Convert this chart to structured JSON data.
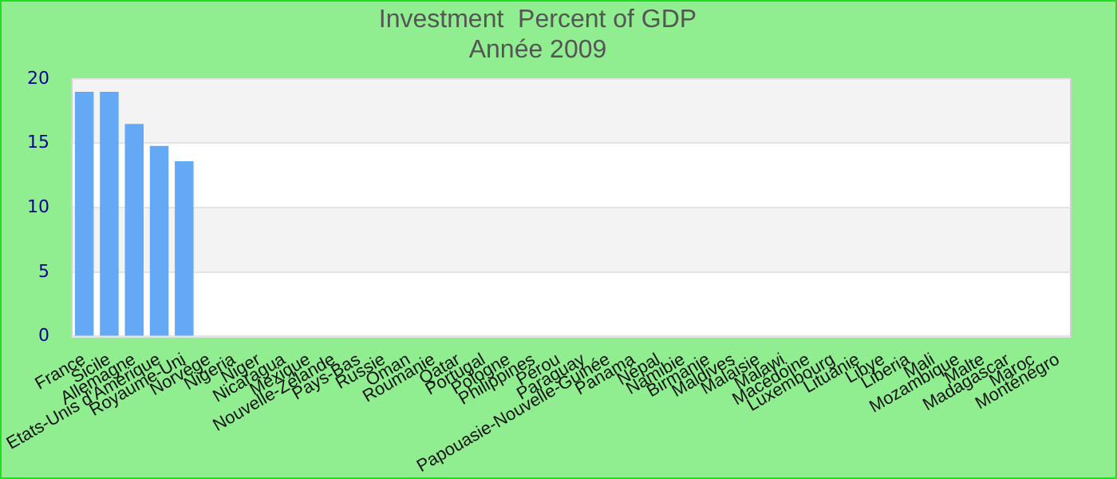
{
  "chart_data": {
    "type": "bar",
    "title": "Investment  Percent of GDP",
    "subtitle": "Année 2009",
    "categories": [
      "France",
      "Sicile",
      "Allemagne",
      "Etats-Unis d'Amérique",
      "Royaume-Uni",
      "Norvège",
      "Nigeria",
      "Niger",
      "Nicaragua",
      "Mexique",
      "Nouvelle-Zélande",
      "Pays-Bas",
      "Russie",
      "Oman",
      "Roumanie",
      "Qatar",
      "Portugal",
      "Pologne",
      "Philippines",
      "Pérou",
      "Paraguay",
      "Papouasie-Nouvelle-Guinée",
      "Panama",
      "Népal",
      "Namibie",
      "Birmanie",
      "Maldives",
      "Malaisie",
      "Malawi",
      "Macédoine",
      "Luxembourg",
      "Lituanie",
      "Libye",
      "Liberia",
      "Mali",
      "Mozambique",
      "Malte",
      "Madagascar",
      "Maroc",
      "Monténégro"
    ],
    "values": [
      19,
      19,
      16.5,
      14.8,
      13.6,
      null,
      null,
      null,
      null,
      null,
      null,
      null,
      null,
      null,
      null,
      null,
      null,
      null,
      null,
      null,
      null,
      null,
      null,
      null,
      null,
      null,
      null,
      null,
      null,
      null,
      null,
      null,
      null,
      null,
      null,
      null,
      null,
      null,
      null,
      null
    ],
    "color": "#63a9f4",
    "ylim": [
      0,
      20
    ],
    "yticks": [
      0,
      5,
      10,
      15,
      20
    ],
    "grid": "y",
    "legend": false
  }
}
